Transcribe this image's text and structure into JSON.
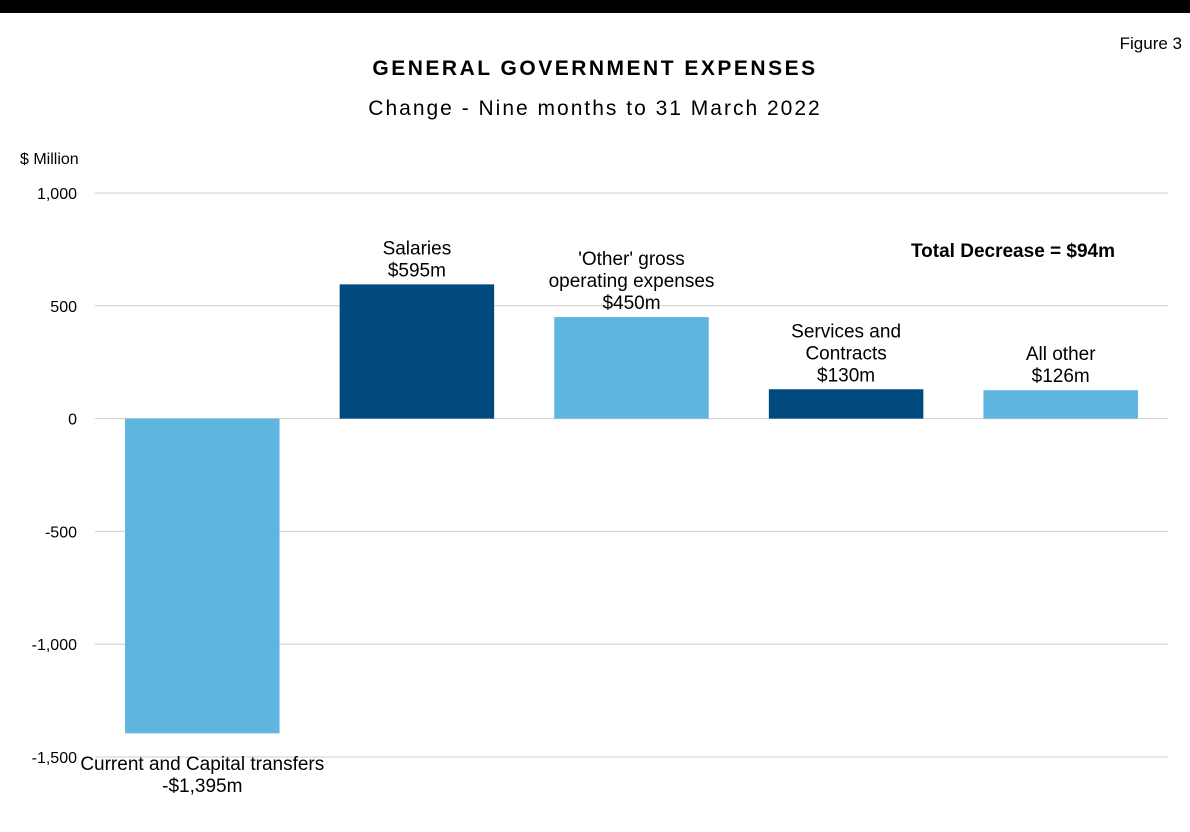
{
  "figure_label": "Figure 3",
  "colors": {
    "light": "#5EB6E0",
    "dark": "#004A80",
    "grid": "#CFCFCF",
    "axis_text": "#000000"
  },
  "chart_data": {
    "type": "bar",
    "title": "GENERAL GOVERNMENT EXPENSES",
    "subtitle": "Change - Nine months to 31 March 2022",
    "ylabel": "$ Million",
    "xlabel": "",
    "ylim": [
      -1500,
      1000
    ],
    "yticks": [
      1000,
      500,
      0,
      -500,
      -1000,
      -1500
    ],
    "ytick_labels": [
      "1,000",
      "500",
      "0",
      "-500",
      "-1,000",
      "-1,500"
    ],
    "grid": true,
    "annotation": "Total Decrease = $94m",
    "categories": [
      "Current and Capital transfers",
      "Salaries",
      "'Other' gross operating expenses",
      "Services and Contracts",
      "All other"
    ],
    "values": [
      -1395,
      595,
      450,
      130,
      126
    ],
    "bar_colors": [
      "#5EB6E0",
      "#004A80",
      "#5EB6E0",
      "#004A80",
      "#5EB6E0"
    ],
    "data_labels": [
      [
        "Current and Capital transfers",
        "-$1,395m"
      ],
      [
        "Salaries",
        "$595m"
      ],
      [
        "'Other' gross",
        "operating expenses",
        "$450m"
      ],
      [
        "Services and",
        "Contracts",
        "$130m"
      ],
      [
        "All other",
        "$126m"
      ]
    ]
  }
}
